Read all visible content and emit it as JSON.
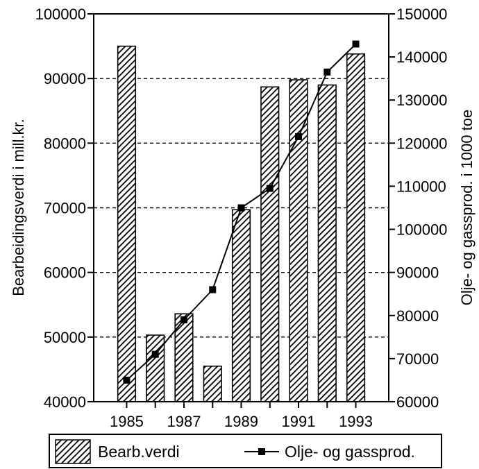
{
  "chart_data": {
    "type": "bar",
    "x_ticks": [
      "1985",
      "1987",
      "1989",
      "1991",
      "1993"
    ],
    "x": [
      1985,
      1986,
      1987,
      1988,
      1989,
      1990,
      1991,
      1992,
      1993
    ],
    "ylabel_left": "Bearbeidingsverdi i mill.kr.",
    "ylabel_right": "Olje- og gassprod. i 1000 toe",
    "ylim_left": [
      40000,
      100000
    ],
    "ylim_right": [
      60000,
      150000
    ],
    "yticks_left": [
      "40000",
      "50000",
      "60000",
      "70000",
      "80000",
      "90000",
      "100000"
    ],
    "yticks_right": [
      "60000",
      "70000",
      "80000",
      "90000",
      "100000",
      "110000",
      "120000",
      "130000",
      "140000",
      "150000"
    ],
    "grid": "horizontal dashed at left-axis ticks",
    "legend_position": "bottom",
    "series": [
      {
        "name": "Bearb.verdi",
        "kind": "bar",
        "axis": "left",
        "pattern": "diagonal-hatch",
        "values": [
          95000,
          50300,
          53600,
          45500,
          69700,
          88700,
          89800,
          89000,
          93800
        ]
      },
      {
        "name": "Olje- og gassprod.",
        "kind": "line",
        "axis": "right",
        "marker": "square",
        "values": [
          65000,
          71000,
          79000,
          86000,
          105000,
          109500,
          121500,
          136500,
          143000
        ]
      }
    ]
  }
}
